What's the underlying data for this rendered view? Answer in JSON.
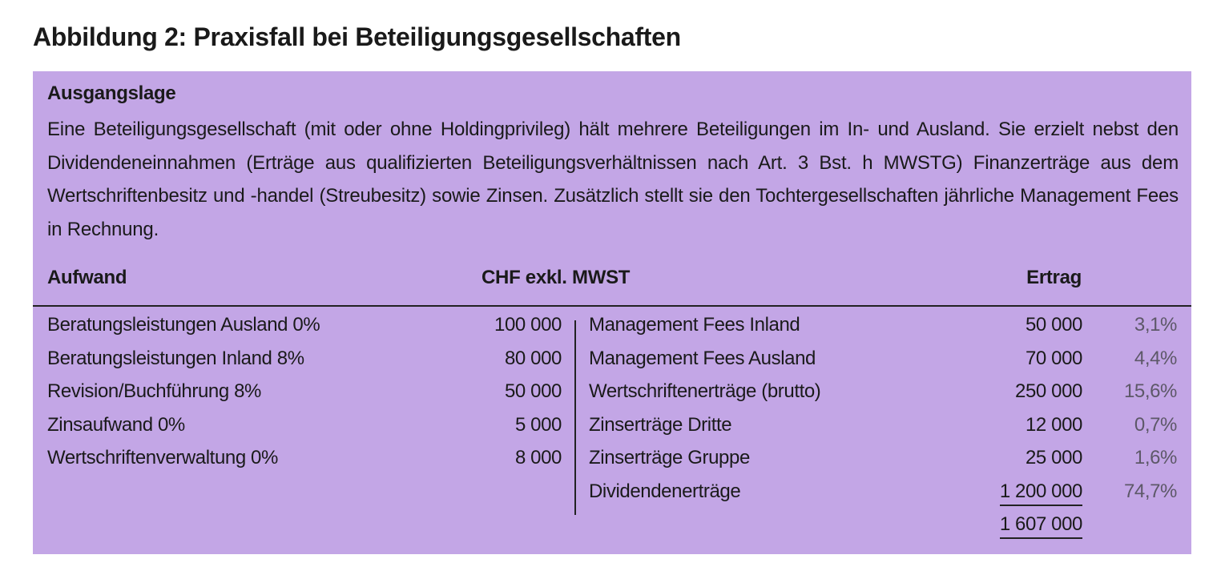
{
  "title": "Abbildung 2: Praxisfall bei Beteiligungsgesellschaften",
  "section_title": "Ausgangslage",
  "paragraph": "Eine Beteiligungsgesellschaft (mit oder ohne Holdingprivileg) hält mehrere Beteiligungen im In- und Ausland. Sie erzielt nebst den Dividendeneinnahmen (Erträge aus qualifizierten Beteiligungsverhältnissen nach Art. 3 Bst. h MWSTG) Finanzerträge aus dem Wertschriftenbesitz und -handel (Streubesitz) sowie Zinsen. Zusätzlich stellt sie den Tochtergesellschaften jährliche Management Fees in Rechnung.",
  "table": {
    "headers": {
      "aufwand": "Aufwand",
      "currency": "CHF exkl. MWST",
      "ertrag": "Ertrag"
    },
    "aufwand": [
      {
        "label": "Beratungsleistungen Ausland 0%",
        "amount": "100 000"
      },
      {
        "label": "Beratungsleistungen Inland 8%",
        "amount": "80 000"
      },
      {
        "label": "Revision/Buchführung 8%",
        "amount": "50 000"
      },
      {
        "label": "Zinsaufwand 0%",
        "amount": "5 000"
      },
      {
        "label": "Wertschriftenverwaltung 0%",
        "amount": "8 000"
      }
    ],
    "ertrag": [
      {
        "label": "Management Fees Inland",
        "amount": "50 000",
        "percent": "3,1%"
      },
      {
        "label": "Management Fees Ausland",
        "amount": "70 000",
        "percent": "4,4%"
      },
      {
        "label": "Wertschriftenerträge (brutto)",
        "amount": "250 000",
        "percent": "15,6%"
      },
      {
        "label": "Zinserträge Dritte",
        "amount": "12 000",
        "percent": "0,7%"
      },
      {
        "label": "Zinserträge Gruppe",
        "amount": "25 000",
        "percent": "1,6%"
      },
      {
        "label": "Dividendenerträge",
        "amount": "1 200 000",
        "percent": "74,7%"
      }
    ],
    "total": "1 607 000"
  },
  "colors": {
    "box_background": "#c3a6e6",
    "percent_text": "#5d5868"
  }
}
